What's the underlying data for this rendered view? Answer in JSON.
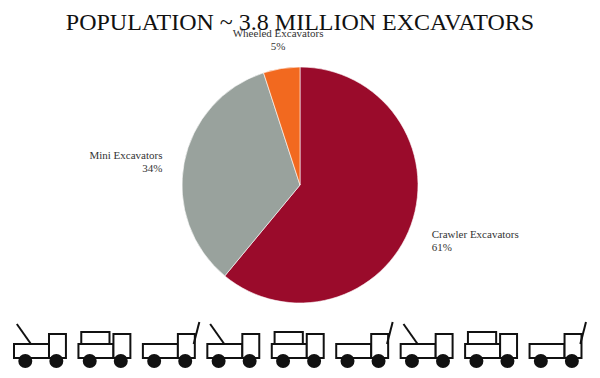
{
  "chart_data": {
    "type": "pie",
    "title": "POPULATION ~ 3.8 MILLION EXCAVATORS",
    "categories": [
      "Crawler Excavators",
      "Mini Excavators",
      "Wheeled Excavators"
    ],
    "values": [
      61,
      34,
      5
    ],
    "value_labels": [
      "61%",
      "34%",
      "5%"
    ],
    "colors": [
      "#9a0b2b",
      "#99a29d",
      "#f2691f"
    ],
    "data_labels": true
  }
}
